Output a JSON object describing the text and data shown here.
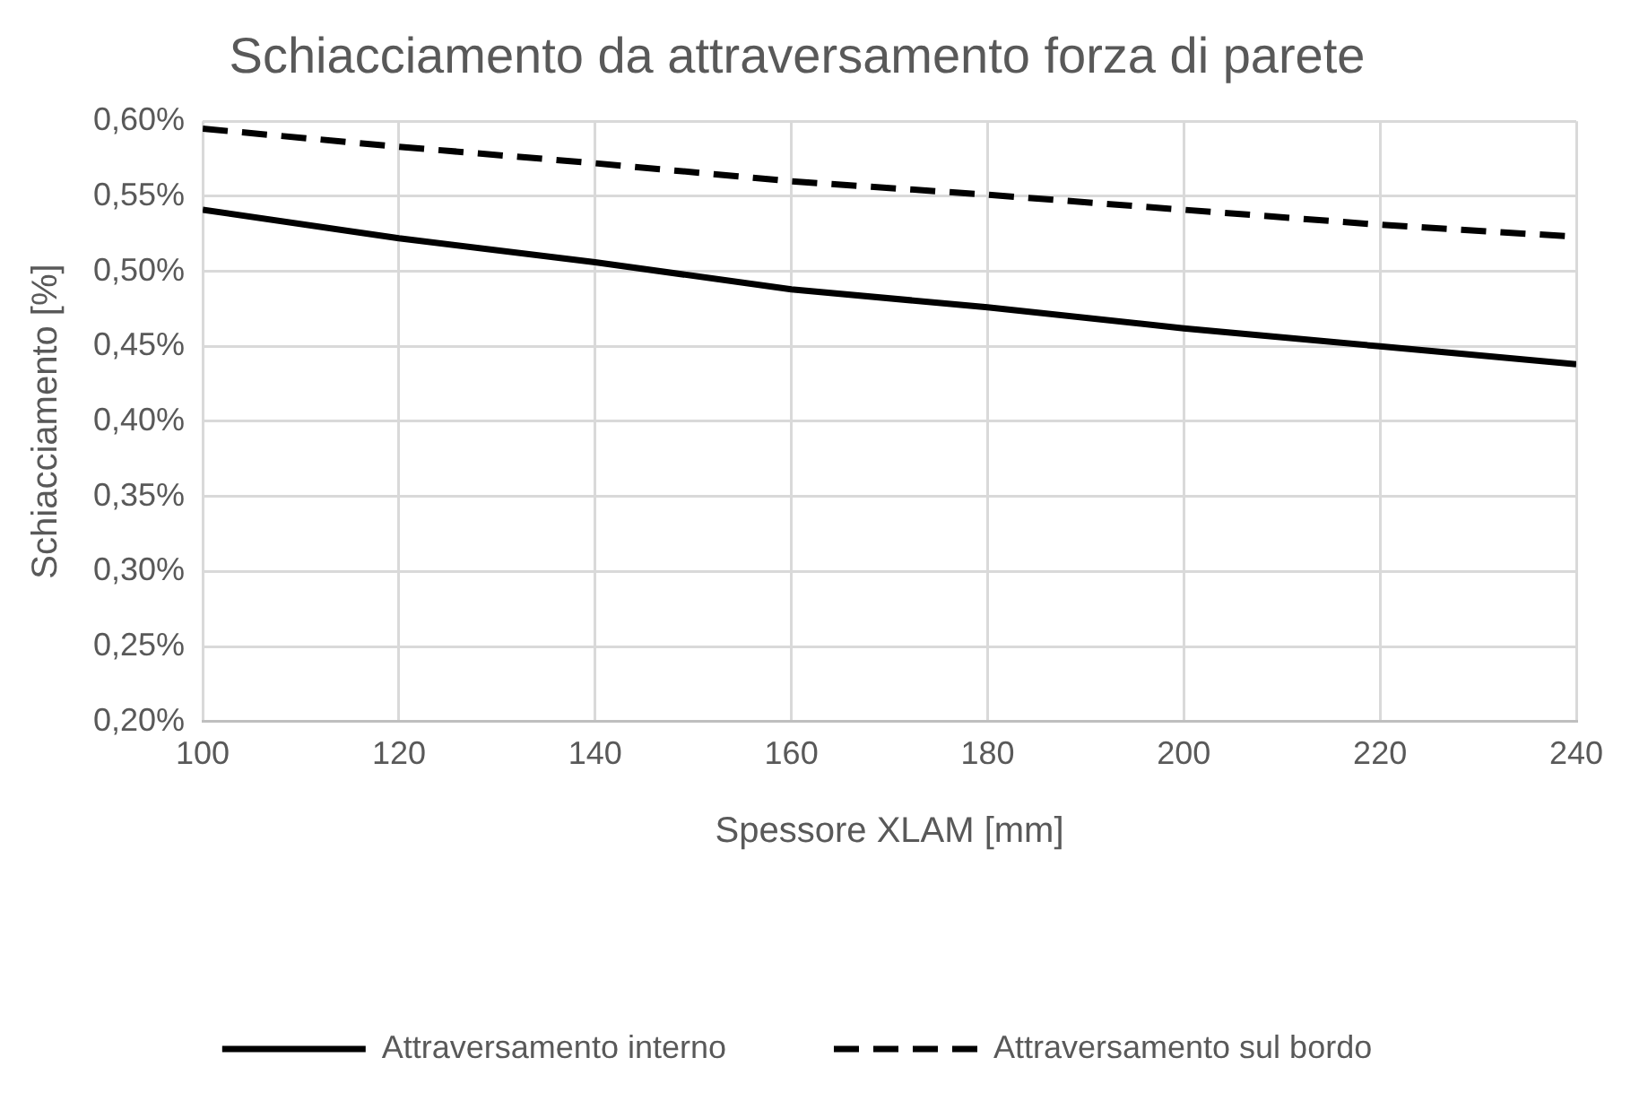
{
  "chart_data": {
    "type": "line",
    "title": "Schiacciamento da attraversamento forza di parete",
    "xlabel": "Spessore XLAM [mm]",
    "ylabel": "Schiacciamento [%]",
    "x": [
      100,
      120,
      140,
      160,
      180,
      200,
      220,
      240
    ],
    "series": [
      {
        "name": "Attraversamento interno",
        "color": "#000000",
        "line_style": "solid",
        "values": [
          0.541,
          0.522,
          0.506,
          0.488,
          0.476,
          0.462,
          0.45,
          0.438
        ]
      },
      {
        "name": "Attraversamento sul bordo",
        "color": "#000000",
        "line_style": "dashed",
        "values": [
          0.595,
          0.583,
          0.572,
          0.56,
          0.551,
          0.541,
          0.531,
          0.523
        ]
      }
    ],
    "xlim": [
      100,
      240
    ],
    "xticks": [
      100,
      120,
      140,
      160,
      180,
      200,
      220,
      240
    ],
    "ylim": [
      0.2,
      0.6
    ],
    "yticks": [
      {
        "value": 0.2,
        "label": "0,20%"
      },
      {
        "value": 0.25,
        "label": "0,25%"
      },
      {
        "value": 0.3,
        "label": "0,30%"
      },
      {
        "value": 0.35,
        "label": "0,35%"
      },
      {
        "value": 0.4,
        "label": "0,40%"
      },
      {
        "value": 0.45,
        "label": "0,45%"
      },
      {
        "value": 0.5,
        "label": "0,50%"
      },
      {
        "value": 0.55,
        "label": "0,55%"
      },
      {
        "value": 0.6,
        "label": "0,60%"
      }
    ],
    "grid": true,
    "legend": "bottom",
    "marker": "none"
  }
}
